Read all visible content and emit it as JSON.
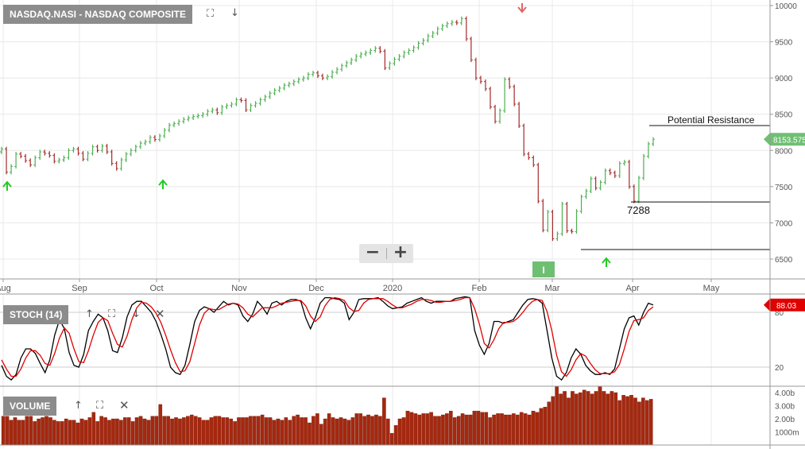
{
  "colors": {
    "up": "#4caf50",
    "down": "#a52a2a",
    "stoch_k": "#000000",
    "stoch_d": "#e00000",
    "volume": "#a5280f",
    "price_tag": "#6fbf73",
    "stoch_tag": "#e00000",
    "signal_up": "#22cc22",
    "signal_down": "#e06666",
    "grid": "#e8e8e8"
  },
  "panels": {
    "price": {
      "label": "NASDAQ.NASI - NASDAQ COMPOSITE",
      "current_price_tag": "8153.575",
      "icons": [
        "expand-icon",
        "arrow-down-icon"
      ]
    },
    "stoch": {
      "label": "STOCH (14)",
      "current_value_tag": "88.03",
      "icons": [
        "arrow-up-icon",
        "expand-icon",
        "arrow-down-icon",
        "close-icon"
      ]
    },
    "volume": {
      "label": "VOLUME",
      "icons": [
        "arrow-up-icon",
        "expand-icon",
        "close-icon"
      ]
    }
  },
  "zoom": {
    "minus": "−",
    "plus": "+"
  },
  "event_marker": "I",
  "chart_data": [
    {
      "type": "ohlc",
      "title": "NASDAQ.NASI - NASDAQ COMPOSITE",
      "x_tick_labels": [
        "Aug",
        "Sep",
        "Oct",
        "Nov",
        "Dec",
        "2020",
        "Feb",
        "Mar",
        "Apr",
        "May"
      ],
      "ylim": [
        6400,
        10000
      ],
      "y_ticks": [
        6500,
        7000,
        7500,
        8000,
        8500,
        9000,
        9500,
        10000
      ],
      "last_value": 8153.575,
      "close_series": [
        8020,
        7700,
        7780,
        7950,
        7920,
        7860,
        7800,
        7900,
        7980,
        7960,
        7930,
        7850,
        7870,
        7900,
        8000,
        8020,
        7960,
        7880,
        7960,
        8050,
        8000,
        8060,
        7980,
        7820,
        7750,
        7870,
        7950,
        8000,
        8050,
        8100,
        8120,
        8180,
        8150,
        8200,
        8280,
        8350,
        8370,
        8400,
        8430,
        8450,
        8470,
        8480,
        8500,
        8540,
        8560,
        8520,
        8600,
        8620,
        8640,
        8700,
        8690,
        8560,
        8620,
        8650,
        8700,
        8740,
        8790,
        8830,
        8860,
        8900,
        8920,
        8950,
        8980,
        9000,
        9050,
        9070,
        9030,
        9000,
        9020,
        9080,
        9120,
        9170,
        9210,
        9250,
        9300,
        9330,
        9350,
        9380,
        9410,
        9370,
        9140,
        9200,
        9260,
        9300,
        9350,
        9380,
        9420,
        9480,
        9520,
        9580,
        9620,
        9680,
        9720,
        9750,
        9770,
        9760,
        9820,
        9540,
        9250,
        9000,
        8950,
        8850,
        8600,
        8400,
        8550,
        8980,
        8880,
        8640,
        8340,
        7950,
        7900,
        7800,
        7300,
        6900,
        7150,
        6780,
        6850,
        7260,
        6890,
        6880,
        7160,
        7360,
        7440,
        7610,
        7480,
        7560,
        7720,
        7690,
        7650,
        7820,
        7840,
        7500,
        7300,
        7620,
        7920,
        8090,
        8153.575
      ],
      "annotations": [
        {
          "text": "Potential Resistance",
          "value": 8380
        },
        {
          "text": "7288",
          "value": 7288
        },
        {
          "text": "",
          "value": 6631
        }
      ]
    },
    {
      "type": "line",
      "title": "STOCH (14)",
      "ylim": [
        0,
        100
      ],
      "y_ticks": [
        20,
        80
      ],
      "last_value": 88.03,
      "series": [
        {
          "name": "",
          "values": [
            22,
            10,
            6,
            12,
            30,
            40,
            40,
            35,
            24,
            14,
            28,
            55,
            72,
            62,
            36,
            22,
            20,
            34,
            60,
            70,
            78,
            74,
            60,
            38,
            36,
            52,
            75,
            88,
            92,
            92,
            86,
            80,
            70,
            56,
            40,
            20,
            14,
            12,
            22,
            45,
            70,
            82,
            86,
            84,
            80,
            86,
            92,
            88,
            90,
            88,
            76,
            70,
            78,
            92,
            86,
            78,
            90,
            92,
            88,
            92,
            94,
            94,
            92,
            74,
            62,
            74,
            90,
            96,
            96,
            95,
            94,
            90,
            72,
            80,
            94,
            95,
            95,
            95,
            96,
            92,
            87,
            84,
            85,
            86,
            90,
            92,
            94,
            96,
            92,
            90,
            92,
            92,
            92,
            92,
            95,
            96,
            97,
            96,
            60,
            44,
            34,
            46,
            70,
            70,
            68,
            70,
            72,
            80,
            88,
            94,
            95,
            94,
            90,
            60,
            30,
            10,
            6,
            14,
            30,
            40,
            34,
            22,
            16,
            12,
            12,
            14,
            12,
            18,
            40,
            62,
            74,
            76,
            66,
            80,
            90,
            88.03
          ]
        },
        {
          "name": "",
          "values": [
            28,
            18,
            10,
            10,
            18,
            30,
            38,
            38,
            33,
            24,
            22,
            35,
            52,
            63,
            57,
            40,
            26,
            25,
            38,
            55,
            69,
            74,
            71,
            57,
            45,
            42,
            54,
            72,
            85,
            91,
            90,
            86,
            79,
            69,
            55,
            39,
            25,
            15,
            16,
            26,
            46,
            66,
            79,
            84,
            83,
            83,
            86,
            89,
            90,
            89,
            85,
            78,
            75,
            80,
            85,
            85,
            85,
            87,
            90,
            91,
            92,
            93,
            93,
            87,
            76,
            70,
            75,
            87,
            94,
            96,
            95,
            93,
            85,
            81,
            82,
            90,
            94,
            95,
            95,
            95,
            92,
            88,
            85,
            85,
            87,
            89,
            92,
            94,
            94,
            93,
            91,
            91,
            92,
            92,
            93,
            94,
            96,
            96,
            84,
            67,
            46,
            41,
            50,
            62,
            69,
            69,
            70,
            74,
            80,
            87,
            92,
            94,
            93,
            81,
            60,
            33,
            15,
            10,
            17,
            28,
            35,
            32,
            24,
            17,
            13,
            13,
            13,
            15,
            23,
            40,
            59,
            71,
            72,
            74,
            82,
            86
          ]
        }
      ]
    },
    {
      "type": "bar",
      "title": "VOLUME",
      "y_tick_labels": [
        "4.00b",
        "3.00b",
        "2.00b",
        "1000m"
      ],
      "ylim": [
        0,
        4.6
      ],
      "values": [
        2.2,
        2.2,
        1.9,
        2.1,
        1.9,
        1.9,
        2.2,
        2.2,
        1.8,
        2.0,
        2.1,
        2.2,
        2.1,
        1.9,
        1.8,
        1.8,
        2.0,
        1.9,
        1.9,
        1.7,
        2.0,
        1.9,
        2.1,
        2.5,
        1.8,
        2.2,
        2.1,
        1.9,
        2.0,
        2.0,
        1.9,
        2.1,
        2.1,
        1.8,
        2.1,
        2.2,
        2.0,
        1.9,
        2.2,
        2.2,
        3.1,
        2.2,
        2.2,
        2.0,
        2.1,
        2.0,
        2.1,
        2.2,
        2.3,
        2.2,
        2.1,
        1.9,
        1.9,
        2.1,
        2.2,
        2.2,
        2.1,
        2.1,
        2.0,
        1.8,
        2.1,
        2.1,
        2.1,
        2.2,
        2.2,
        2.2,
        2.3,
        2.1,
        2.1,
        1.9,
        2.0,
        1.9,
        2.1,
        1.9,
        2.2,
        2.3,
        2.1,
        2.1,
        1.7,
        2.2,
        2.4,
        1.6,
        2.0,
        2.4,
        2.1,
        2.0,
        2.1,
        2.0,
        1.9,
        2.1,
        2.4,
        2.4,
        2.2,
        2.3,
        2.2,
        2.3,
        2.2,
        3.6,
        2.0,
        0.9,
        1.5,
        2.0,
        2.1,
        2.6,
        2.5,
        2.4,
        2.3,
        2.4,
        2.4,
        2.5,
        2.2,
        2.2,
        2.3,
        2.4,
        2.6,
        2.1,
        2.2,
        2.4,
        2.3,
        2.3,
        2.6,
        2.6,
        2.5,
        2.5,
        2.1,
        2.3,
        2.4,
        2.4,
        2.3,
        2.3,
        2.4,
        2.3,
        2.5,
        2.4,
        2.3,
        2.6,
        2.5,
        2.8,
        2.9,
        3.3,
        3.7,
        4.5,
        3.9,
        4.1,
        3.6,
        4.1,
        3.9,
        4.0,
        4.2,
        4.1,
        3.9,
        4.1,
        4.5,
        4.1,
        3.9,
        4.1,
        4.0,
        3.4,
        3.8,
        3.7,
        3.8,
        3.6,
        3.3,
        3.6,
        3.4,
        3.5
      ]
    }
  ]
}
